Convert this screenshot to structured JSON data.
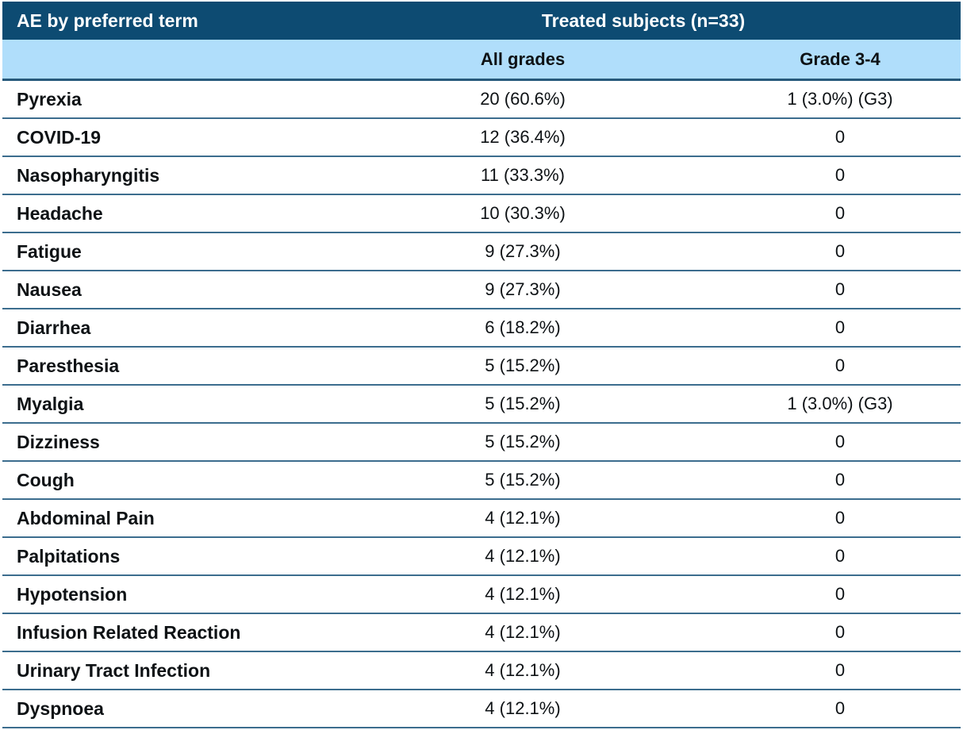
{
  "colors": {
    "header_bg": "#0d4b72",
    "header_text": "#ffffff",
    "subheader_bg": "#b0defb",
    "row_border": "#3c6d8e",
    "subheader_border": "#275a7b",
    "body_text": "#0e1215"
  },
  "table": {
    "col1_header": "AE by preferred term",
    "group_header": "Treated subjects (n=33)",
    "subheaders": {
      "all_grades": "All grades",
      "grade_3_4": "Grade 3-4"
    },
    "rows": [
      {
        "term": "Pyrexia",
        "all_grades": "20 (60.6%)",
        "grade_3_4": "1 (3.0%) (G3)"
      },
      {
        "term": "COVID-19",
        "all_grades": "12 (36.4%)",
        "grade_3_4": "0"
      },
      {
        "term": "Nasopharyngitis",
        "all_grades": "11 (33.3%)",
        "grade_3_4": "0"
      },
      {
        "term": "Headache",
        "all_grades": "10 (30.3%)",
        "grade_3_4": "0"
      },
      {
        "term": "Fatigue",
        "all_grades": "9 (27.3%)",
        "grade_3_4": "0"
      },
      {
        "term": "Nausea",
        "all_grades": "9 (27.3%)",
        "grade_3_4": "0"
      },
      {
        "term": "Diarrhea",
        "all_grades": "6 (18.2%)",
        "grade_3_4": "0"
      },
      {
        "term": "Paresthesia",
        "all_grades": "5 (15.2%)",
        "grade_3_4": "0"
      },
      {
        "term": "Myalgia",
        "all_grades": "5 (15.2%)",
        "grade_3_4": "1 (3.0%) (G3)"
      },
      {
        "term": "Dizziness",
        "all_grades": "5 (15.2%)",
        "grade_3_4": "0"
      },
      {
        "term": "Cough",
        "all_grades": "5 (15.2%)",
        "grade_3_4": "0"
      },
      {
        "term": "Abdominal Pain",
        "all_grades": "4 (12.1%)",
        "grade_3_4": "0"
      },
      {
        "term": "Palpitations",
        "all_grades": "4 (12.1%)",
        "grade_3_4": "0"
      },
      {
        "term": "Hypotension",
        "all_grades": "4 (12.1%)",
        "grade_3_4": "0"
      },
      {
        "term": "Infusion Related Reaction",
        "all_grades": "4 (12.1%)",
        "grade_3_4": "0"
      },
      {
        "term": "Urinary Tract Infection",
        "all_grades": "4 (12.1%)",
        "grade_3_4": "0"
      },
      {
        "term": "Dyspnoea",
        "all_grades": "4 (12.1%)",
        "grade_3_4": "0"
      }
    ]
  },
  "chart_data": {
    "type": "table",
    "title": "Treated subjects (n=33)",
    "columns": [
      "AE by preferred term",
      "All grades",
      "Grade 3-4"
    ],
    "rows": [
      [
        "Pyrexia",
        "20 (60.6%)",
        "1 (3.0%) (G3)"
      ],
      [
        "COVID-19",
        "12 (36.4%)",
        "0"
      ],
      [
        "Nasopharyngitis",
        "11 (33.3%)",
        "0"
      ],
      [
        "Headache",
        "10 (30.3%)",
        "0"
      ],
      [
        "Fatigue",
        "9 (27.3%)",
        "0"
      ],
      [
        "Nausea",
        "9 (27.3%)",
        "0"
      ],
      [
        "Diarrhea",
        "6 (18.2%)",
        "0"
      ],
      [
        "Paresthesia",
        "5 (15.2%)",
        "0"
      ],
      [
        "Myalgia",
        "5 (15.2%)",
        "1 (3.0%) (G3)"
      ],
      [
        "Dizziness",
        "5 (15.2%)",
        "0"
      ],
      [
        "Cough",
        "5 (15.2%)",
        "0"
      ],
      [
        "Abdominal Pain",
        "4 (12.1%)",
        "0"
      ],
      [
        "Palpitations",
        "4 (12.1%)",
        "0"
      ],
      [
        "Hypotension",
        "4 (12.1%)",
        "0"
      ],
      [
        "Infusion Related Reaction",
        "4 (12.1%)",
        "0"
      ],
      [
        "Urinary Tract Infection",
        "4 (12.1%)",
        "0"
      ],
      [
        "Dyspnoea",
        "4 (12.1%)",
        "0"
      ]
    ]
  }
}
